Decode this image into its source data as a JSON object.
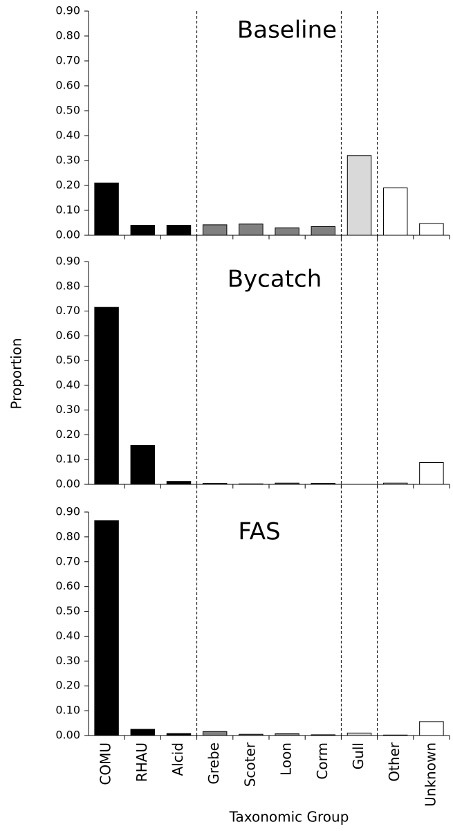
{
  "chart_data": [
    {
      "type": "bar",
      "title": "Baseline",
      "values": [
        0.21,
        0.04,
        0.04,
        0.042,
        0.045,
        0.03,
        0.035,
        0.32,
        0.19,
        0.047
      ],
      "colors": [
        "#000000",
        "#000000",
        "#000000",
        "#808080",
        "#808080",
        "#808080",
        "#808080",
        "#d9d9d9",
        "#ffffff",
        "#ffffff"
      ],
      "ylim": [
        0,
        0.9
      ],
      "yticks": [
        {
          "value": 0,
          "label": "0.00"
        },
        {
          "value": 0.1,
          "label": "0.10"
        },
        {
          "value": 0.2,
          "label": "0.20"
        },
        {
          "value": 0.3,
          "label": "0.30"
        },
        {
          "value": 0.4,
          "label": "0.40"
        },
        {
          "value": 0.5,
          "label": "0.50"
        },
        {
          "value": 0.6,
          "label": "0.60"
        },
        {
          "value": 0.7,
          "label": "0.70"
        },
        {
          "value": 0.8,
          "label": "0.80"
        },
        {
          "value": 0.9,
          "label": "0.90"
        }
      ]
    },
    {
      "type": "bar",
      "title": "Bycatch",
      "ylabel": "Proportion",
      "values": [
        0.715,
        0.158,
        0.012,
        0.004,
        0.002,
        0.005,
        0.004,
        0,
        0.005,
        0.088
      ],
      "colors": [
        "#000000",
        "#000000",
        "#000000",
        "#808080",
        "#808080",
        "#808080",
        "#808080",
        "#d9d9d9",
        "#ffffff",
        "#ffffff"
      ],
      "ylim": [
        0,
        0.9
      ],
      "yticks": [
        {
          "value": 0,
          "label": "0.00"
        },
        {
          "value": 0.1,
          "label": "0.10"
        },
        {
          "value": 0.2,
          "label": "0.20"
        },
        {
          "value": 0.3,
          "label": "0.30"
        },
        {
          "value": 0.4,
          "label": "0.40"
        },
        {
          "value": 0.5,
          "label": "0.50"
        },
        {
          "value": 0.6,
          "label": "0.60"
        },
        {
          "value": 0.7,
          "label": "0.70"
        },
        {
          "value": 0.8,
          "label": "0.80"
        },
        {
          "value": 0.9,
          "label": "0.90"
        }
      ]
    },
    {
      "type": "bar",
      "title": "FAS",
      "xlabel": "Taxonomic Group",
      "categories": [
        "COMU",
        "RHAU",
        "Alcid",
        "Grebe",
        "Scoter",
        "Loon",
        "Corm",
        "Gull",
        "Other",
        "Unknown"
      ],
      "values": [
        0.865,
        0.025,
        0.008,
        0.016,
        0.005,
        0.007,
        0.003,
        0.01,
        0.002,
        0.056
      ],
      "colors": [
        "#000000",
        "#000000",
        "#000000",
        "#808080",
        "#808080",
        "#808080",
        "#808080",
        "#d9d9d9",
        "#ffffff",
        "#ffffff"
      ],
      "ylim": [
        0,
        0.9
      ],
      "yticks": [
        {
          "value": 0,
          "label": "0.00"
        },
        {
          "value": 0.1,
          "label": "0.10"
        },
        {
          "value": 0.2,
          "label": "0.20"
        },
        {
          "value": 0.3,
          "label": "0.30"
        },
        {
          "value": 0.4,
          "label": "0.40"
        },
        {
          "value": 0.5,
          "label": "0.50"
        },
        {
          "value": 0.6,
          "label": "0.60"
        },
        {
          "value": 0.7,
          "label": "0.70"
        },
        {
          "value": 0.8,
          "label": "0.80"
        },
        {
          "value": 0.9,
          "label": "0.90"
        }
      ]
    }
  ]
}
